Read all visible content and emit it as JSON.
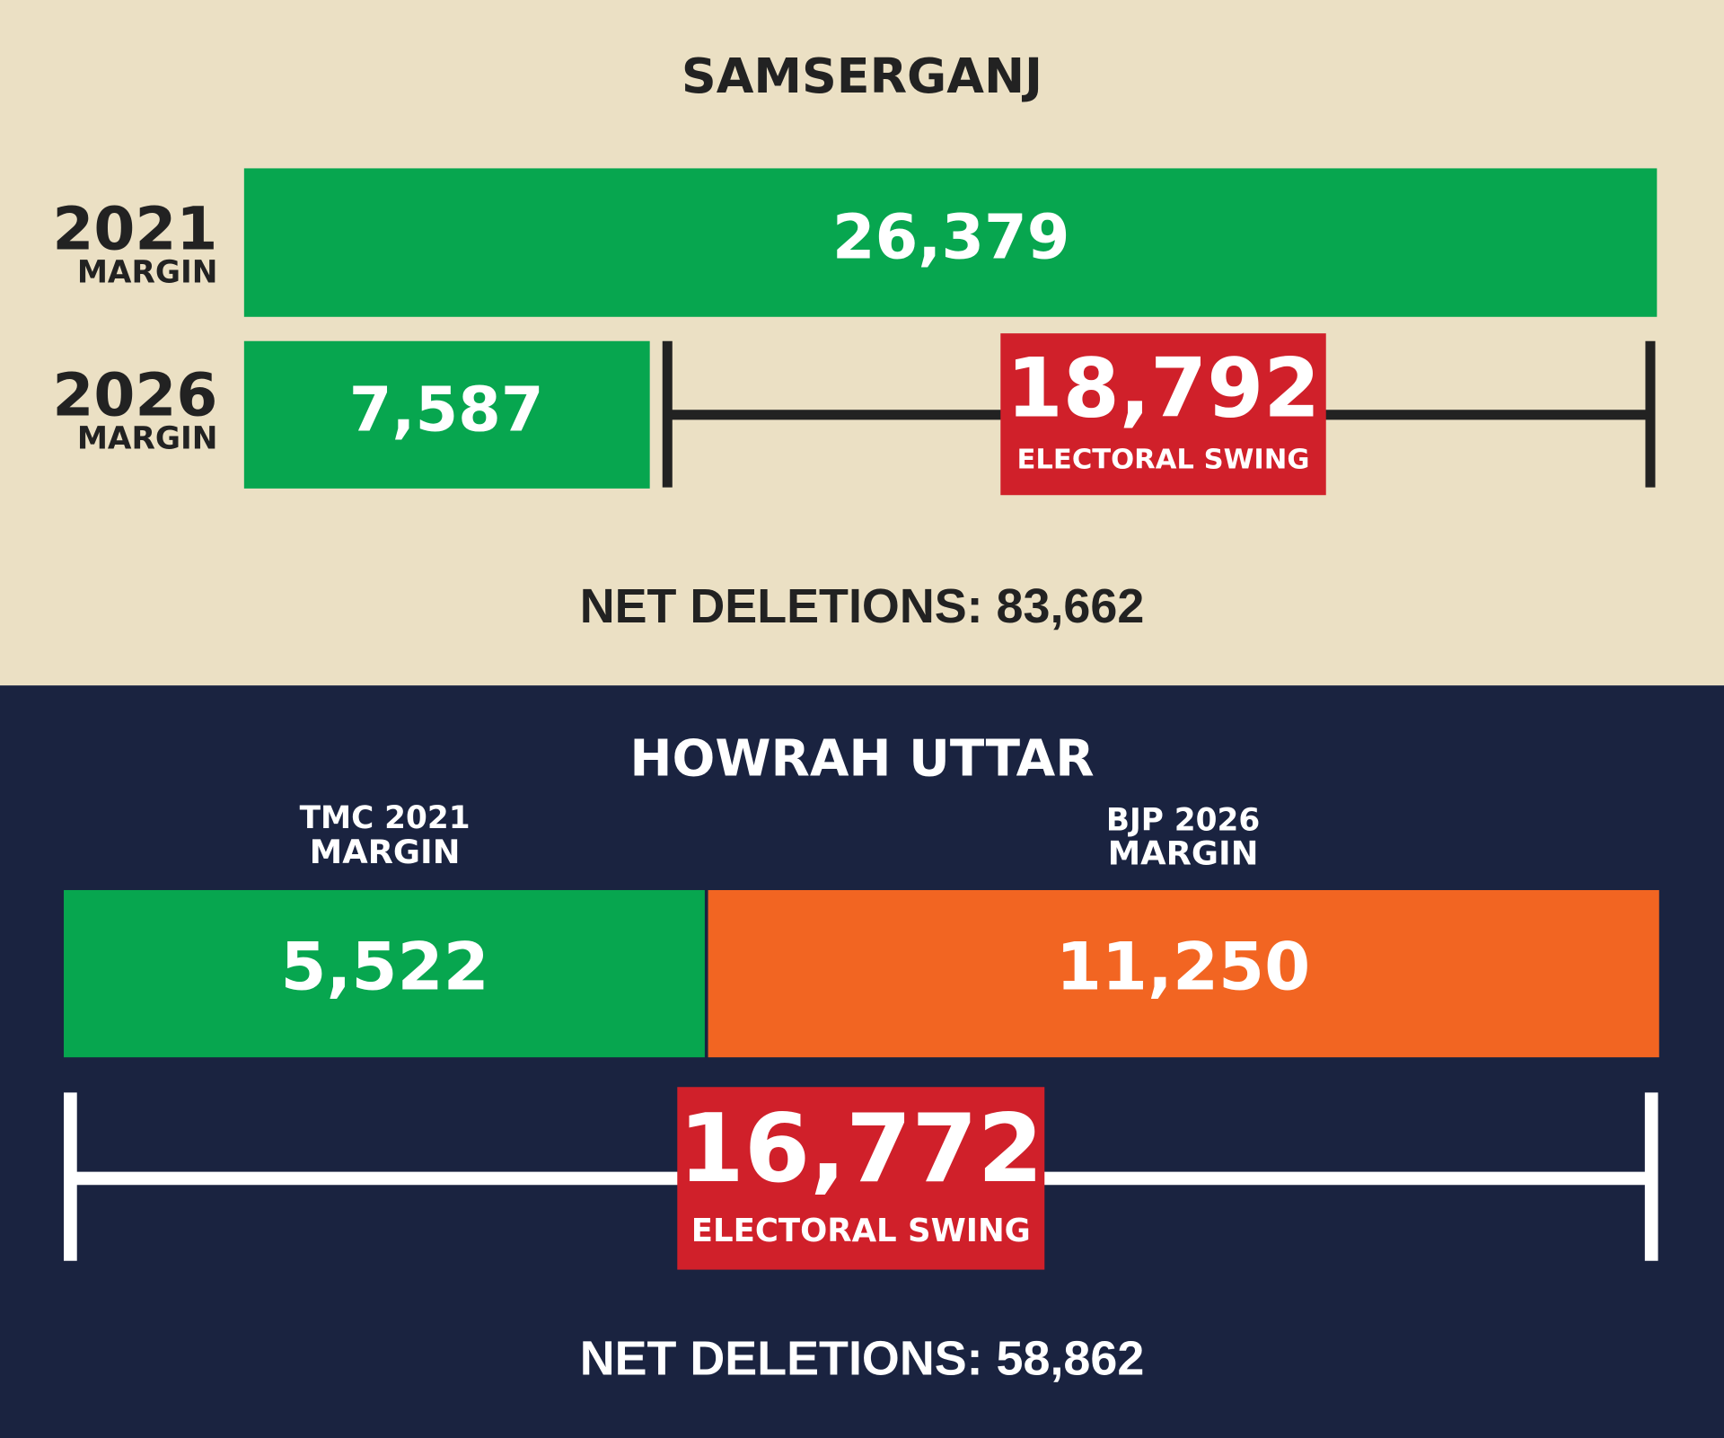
{
  "panels": [
    {
      "title": "SAMSERGANJ",
      "rows": [
        {
          "year": "2021",
          "label": "MARGIN",
          "value": "26,379"
        },
        {
          "year": "2026",
          "label": "MARGIN",
          "value": "7,587"
        }
      ],
      "swing": {
        "value": "18,792",
        "label": "ELECTORAL SWING"
      },
      "net_deletions": "NET DELETIONS: 83,662"
    },
    {
      "title": "HOWRAH UTTAR",
      "segments": [
        {
          "label": "TMC 2021",
          "sublabel": "MARGIN",
          "value": "5,522"
        },
        {
          "label": "BJP 2026",
          "sublabel": "MARGIN",
          "value": "11,250"
        }
      ],
      "swing": {
        "value": "16,772",
        "label": "ELECTORAL SWING"
      },
      "net_deletions": "NET DELETIONS: 58,862"
    }
  ]
}
